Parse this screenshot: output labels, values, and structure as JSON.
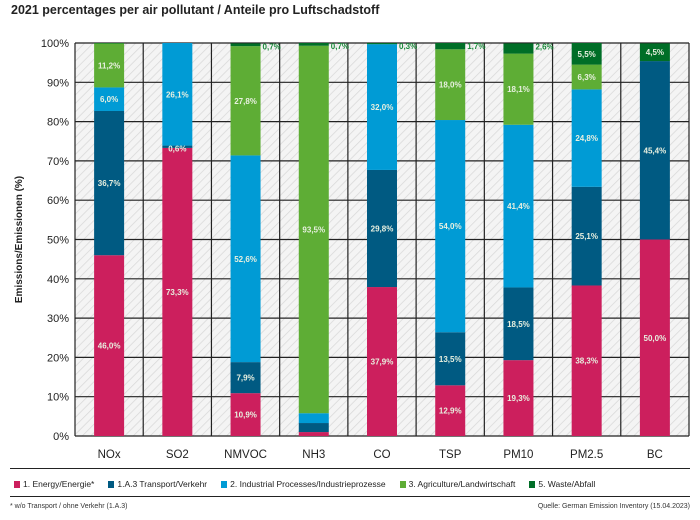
{
  "chart_data": {
    "type": "bar",
    "stacked": true,
    "title": "2021 percentages per air pollutant / Anteile pro Luftschadstoff",
    "ylabel": "Emissions/Emissionen (%)",
    "xlabel": "",
    "ylim": [
      0,
      100
    ],
    "yticks": [
      "0%",
      "10%",
      "20%",
      "30%",
      "40%",
      "50%",
      "60%",
      "70%",
      "80%",
      "90%",
      "100%"
    ],
    "grid": true,
    "legend_position": "bottom",
    "categories": [
      "NOx",
      "SO2",
      "NMVOC",
      "NH3",
      "CO",
      "TSP",
      "PM10",
      "PM2.5",
      "BC"
    ],
    "series": [
      {
        "name": "1. Energy/Energie*",
        "color": "#cc1f5d",
        "values": [
          46.0,
          73.3,
          10.9,
          1.0,
          37.9,
          12.9,
          19.3,
          38.3,
          50.0
        ],
        "labels": [
          "46,0%",
          "73,3%",
          "10,9%",
          null,
          "37,9%",
          "12,9%",
          "19,3%",
          "38,3%",
          "50,0%"
        ]
      },
      {
        "name": "1.A.3 Transport/Verkehr",
        "color": "#005a82",
        "values": [
          36.7,
          0.6,
          7.9,
          2.3,
          29.8,
          13.5,
          18.5,
          25.1,
          45.4
        ],
        "labels": [
          "36,7%",
          "0,6%",
          "7,9%",
          null,
          "29,8%",
          "13,5%",
          "18,5%",
          "25,1%",
          "45,4%"
        ]
      },
      {
        "name": "2. Industrial Processes/Industrieprozesse",
        "color": "#009bd5",
        "values": [
          6.0,
          26.1,
          52.6,
          2.5,
          32.0,
          54.0,
          41.4,
          24.8,
          0
        ],
        "labels": [
          "6,0%",
          "26,1%",
          "52,6%",
          null,
          "32,0%",
          "54,0%",
          "41,4%",
          "24,8%",
          null
        ]
      },
      {
        "name": "3. Agriculture/Landwirtschaft",
        "color": "#5ead35",
        "values": [
          11.2,
          0,
          27.8,
          93.5,
          0,
          18.0,
          18.1,
          6.3,
          0
        ],
        "labels": [
          "11,2%",
          null,
          "27,8%",
          "93,5%",
          null,
          "18,0%",
          "18,1%",
          "6,3%",
          null
        ]
      },
      {
        "name": "5. Waste/Abfall",
        "color": "#006e27",
        "values": [
          0.1,
          0,
          0.7,
          0.7,
          0.3,
          1.7,
          2.6,
          5.5,
          4.5
        ],
        "labels": [
          null,
          null,
          "0,7%",
          "0,7%",
          "0,3%",
          "1,7%",
          "2,6%",
          "5,5%",
          "4,5%"
        ]
      }
    ]
  },
  "footnote": "* w/o Transport / ohne Verkehr (1.A.3)",
  "source": "Quelle: German Emission Inventory (15.04.2023)"
}
